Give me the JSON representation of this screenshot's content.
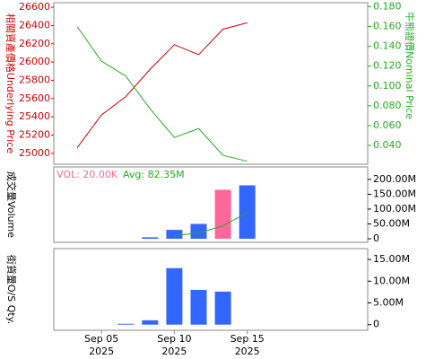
{
  "chart_data": [
    {
      "type": "line",
      "y_label": "相關資產價格Underlying Price",
      "y2_label": "牛熊證價Nominal Price",
      "ylim": [
        24880,
        26650
      ],
      "yticks": [
        25000,
        25200,
        25400,
        25600,
        25800,
        26000,
        26200,
        26400,
        26600
      ],
      "y2lim": [
        0.021,
        0.184
      ],
      "y2ticks": [
        {
          "value": 0.04,
          "label": "0.040"
        },
        {
          "value": 0.06,
          "label": "0.060"
        },
        {
          "value": 0.08,
          "label": "0.080"
        },
        {
          "value": 0.1,
          "label": "0.100"
        },
        {
          "value": 0.12,
          "label": "0.120"
        },
        {
          "value": 0.14,
          "label": "0.140"
        },
        {
          "value": 0.16,
          "label": "0.160"
        },
        {
          "value": 0.18,
          "label": "0.180"
        }
      ],
      "series": [
        {
          "color": "#cc0000",
          "values": [
            25060,
            25420,
            25620,
            25920,
            26190,
            26080,
            26360,
            26430
          ]
        },
        {
          "color": "#22aa22",
          "axis": "y2",
          "values": [
            0.16,
            0.125,
            0.11,
            0.077,
            0.048,
            0.057,
            0.03,
            0.024
          ]
        }
      ]
    },
    {
      "type": "bar",
      "y_label": "成交量Volume",
      "y2lim": [
        -12000000,
        242000000
      ],
      "y2ticks": [
        {
          "value": 0,
          "label": "0"
        },
        {
          "value": 50000000,
          "label": "50.00M"
        },
        {
          "value": 100000000,
          "label": "100.00M"
        },
        {
          "value": 150000000,
          "label": "150.00M"
        },
        {
          "value": 200000000,
          "label": "200.00M"
        }
      ],
      "series": [
        {
          "name": "VOL: 20.00K",
          "color": "#ff6699",
          "bar_color": "#3366ff",
          "highlight": 6,
          "axis": "y2",
          "values": [
            null,
            null,
            null,
            5000000,
            30000000,
            50000000,
            165000000,
            180000000
          ]
        },
        {
          "name": "Avg: 82.35M",
          "color": "#22aa22",
          "type": "line",
          "axis": "y2",
          "values": [
            null,
            null,
            null,
            null,
            10000000,
            20000000,
            43000000,
            88000000
          ]
        }
      ]
    },
    {
      "type": "bar",
      "y_label": "街貨量O/S Qty.",
      "y2lim": [
        -1300000,
        17500000
      ],
      "y2ticks": [
        {
          "value": 0,
          "label": "0"
        },
        {
          "value": 5000000,
          "label": "5.00M"
        },
        {
          "value": 10000000,
          "label": "10.00M"
        },
        {
          "value": 15000000,
          "label": "15.00M"
        }
      ],
      "categories": [
        null,
        "Sep 05",
        null,
        null,
        "Sep 10",
        null,
        null,
        "Sep 15"
      ],
      "x_sublabels": [
        null,
        "2025",
        null,
        null,
        "2025",
        null,
        null,
        "2025"
      ],
      "series": [
        {
          "color": "#3366ff",
          "axis": "y2",
          "values": [
            null,
            null,
            200000,
            1000000,
            13000000,
            8000000,
            7600000,
            null
          ]
        }
      ]
    }
  ]
}
